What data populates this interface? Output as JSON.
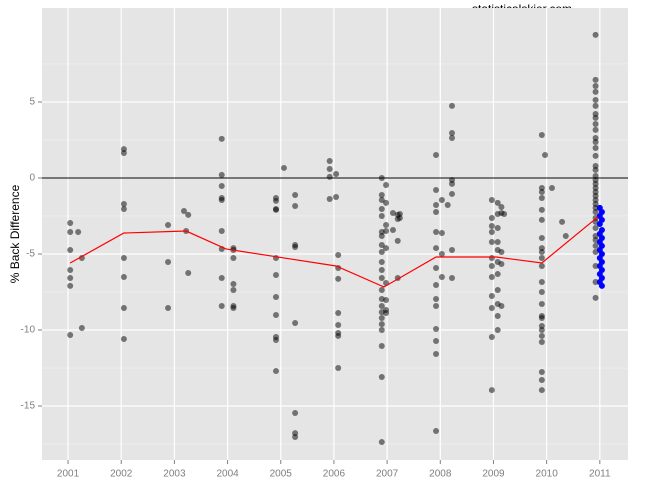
{
  "chart_data": {
    "type": "scatter",
    "watermark": "statisticalskier.com",
    "y_label": "% Back Difference",
    "xlim": [
      2000.51,
      2011.53
    ],
    "xticks": [
      2001,
      2002,
      2003,
      2004,
      2005,
      2006,
      2007,
      2008,
      2009,
      2010,
      2011
    ],
    "ylim": [
      -18.55,
      11.18
    ],
    "yticks": [
      -15,
      -10,
      -5,
      0,
      5
    ],
    "yminor": [
      -17.5,
      -12.5,
      -7.5,
      -2.5,
      2.5,
      7.5
    ],
    "grid": true,
    "hline": 0,
    "background": "#e5e5e5",
    "series": [
      {
        "mode": "points",
        "color": "#000000",
        "alpha": 0.5,
        "x": [
          2001.04,
          2001.04,
          2001.04,
          2001.04,
          2001.04,
          2001.04,
          2001.04,
          2001.19,
          2001.26,
          2001.26,
          2002.05,
          2002.05,
          2002.05,
          2002.05,
          2002.05,
          2002.05,
          2002.05,
          2002.05,
          2002.88,
          2002.88,
          2002.88,
          2003.18,
          2003.26,
          2003.26,
          2003.22,
          2003.89,
          2003.89,
          2003.89,
          2003.89,
          2003.89,
          2003.89,
          2003.89,
          2003.89,
          2003.89,
          2004.11,
          2004.11,
          2004.11,
          2004.11,
          2004.11,
          2004.11,
          2004.11,
          2004.91,
          2004.91,
          2004.91,
          2004.91,
          2004.91,
          2004.91,
          2004.91,
          2004.91,
          2004.91,
          2004.91,
          2004.91,
          2005.06,
          2005.27,
          2005.27,
          2005.27,
          2005.27,
          2005.27,
          2005.27,
          2005.27,
          2005.27,
          2005.92,
          2005.92,
          2005.92,
          2005.92,
          2006.04,
          2006.04,
          2006.08,
          2006.08,
          2006.08,
          2006.08,
          2006.08,
          2006.08,
          2006.08,
          2006.08,
          2006.9,
          2006.9,
          2006.9,
          2006.9,
          2006.9,
          2006.9,
          2006.9,
          2006.9,
          2006.9,
          2006.9,
          2006.9,
          2006.9,
          2006.9,
          2006.9,
          2006.9,
          2006.9,
          2006.9,
          2006.9,
          2006.9,
          2006.9,
          2006.9,
          2006.9,
          2006.98,
          2006.98,
          2006.98,
          2006.98,
          2006.98,
          2006.98,
          2006.98,
          2006.98,
          2006.98,
          2007.11,
          2007.11,
          2007.2,
          2007.2,
          2007.2,
          2007.2,
          2007.24,
          2007.24,
          2007.92,
          2007.92,
          2007.92,
          2007.92,
          2007.92,
          2007.92,
          2007.92,
          2007.92,
          2007.92,
          2007.92,
          2007.92,
          2007.92,
          2007.92,
          2007.92,
          2008.03,
          2008.03,
          2008.03,
          2008.03,
          2008.14,
          2008.22,
          2008.22,
          2008.22,
          2008.22,
          2008.22,
          2008.22,
          2008.22,
          2008.22,
          2008.97,
          2008.97,
          2008.97,
          2008.97,
          2008.97,
          2008.97,
          2008.97,
          2008.97,
          2008.97,
          2008.97,
          2008.97,
          2008.97,
          2009.08,
          2009.08,
          2009.08,
          2009.08,
          2009.08,
          2009.08,
          2009.08,
          2009.08,
          2009.08,
          2009.08,
          2009.08,
          2009.15,
          2009.15,
          2009.15,
          2009.15,
          2009.15,
          2009.2,
          2009.91,
          2009.91,
          2009.91,
          2009.91,
          2009.91,
          2009.91,
          2009.91,
          2009.91,
          2009.91,
          2009.91,
          2009.91,
          2009.91,
          2009.91,
          2009.91,
          2009.91,
          2009.91,
          2009.91,
          2009.91,
          2009.91,
          2009.91,
          2009.91,
          2009.91,
          2009.91,
          2009.97,
          2010.1,
          2010.29,
          2010.36,
          2010.92,
          2010.92,
          2010.92,
          2010.92,
          2010.92,
          2010.92,
          2010.92,
          2010.92,
          2010.92,
          2010.92,
          2010.92,
          2010.92,
          2010.92,
          2010.92,
          2010.92,
          2010.92,
          2010.92,
          2010.92,
          2010.92,
          2010.92,
          2010.92,
          2010.92,
          2010.92,
          2010.92,
          2010.92,
          2010.92,
          2010.92,
          2010.92,
          2010.92,
          2010.92,
          2010.92,
          2010.92,
          2010.92,
          2010.92,
          2010.92,
          2010.92
        ],
        "values": [
          -2.96,
          -3.55,
          -4.74,
          -6.05,
          -6.58,
          -7.1,
          -10.33,
          -3.55,
          -5.26,
          -9.87,
          1.9,
          1.64,
          -1.71,
          -2.04,
          -5.26,
          -6.51,
          -8.55,
          -10.59,
          -3.09,
          -5.53,
          -8.55,
          -2.17,
          -2.43,
          -6.25,
          -3.49,
          2.57,
          0.2,
          -0.53,
          -1.32,
          -1.45,
          -3.49,
          -4.67,
          -6.58,
          -8.42,
          -4.61,
          -4.74,
          -5.26,
          -6.97,
          -7.37,
          -8.42,
          -8.55,
          -1.32,
          -1.51,
          -2.04,
          -2.1,
          -5.26,
          -6.38,
          -7.83,
          -9.01,
          -10.46,
          -10.66,
          -12.7,
          0.66,
          -1.12,
          -1.84,
          -4.41,
          -4.54,
          -9.54,
          -15.46,
          -16.78,
          -17.04,
          1.12,
          0.59,
          0.07,
          -1.38,
          0.26,
          -1.25,
          -5.07,
          -5.92,
          -6.64,
          -8.88,
          -9.67,
          -10.2,
          -10.39,
          -12.5,
          0,
          -1.12,
          -1.45,
          -2.04,
          -2.5,
          -3.55,
          -3.82,
          -4.41,
          -4.87,
          -5.53,
          -6.05,
          -6.58,
          -7.37,
          -7.96,
          -8.42,
          -8.82,
          -9.21,
          -9.61,
          -10,
          -11.05,
          -13.09,
          -17.37,
          -0.46,
          -1.64,
          -3.09,
          -3.49,
          -4.61,
          -6.91,
          -8.03,
          -8.68,
          -8.88,
          -2.3,
          -3.42,
          -2.43,
          -2.7,
          -4.14,
          -6.58,
          -2.37,
          -2.63,
          1.51,
          -0.79,
          -1.78,
          -2.24,
          -3.55,
          -4.61,
          -5.92,
          -7.04,
          -7.96,
          -8.42,
          -9.93,
          -10.72,
          -11.58,
          -16.64,
          -1.45,
          -3.62,
          -5.0,
          -6.51,
          -1.78,
          4.74,
          2.96,
          2.63,
          -0.13,
          -0.39,
          -1.05,
          -4.74,
          -6.58,
          -1.45,
          -2.63,
          -3.16,
          -3.55,
          -4.21,
          -5.26,
          -5.79,
          -6.51,
          -7.76,
          -8.55,
          -10.46,
          -13.95,
          -1.64,
          -2.37,
          -3.29,
          -4.21,
          -4.74,
          -5.53,
          -6.32,
          -7.37,
          -8.29,
          -9.08,
          -10,
          -1.91,
          -2.3,
          -4.87,
          -5.66,
          -8.42,
          -2.37,
          2.83,
          -0.66,
          -0.92,
          -1.32,
          -2.1,
          -2.76,
          -3.95,
          -4.61,
          -4.87,
          -5.26,
          -5.79,
          -6.84,
          -7.5,
          -8.29,
          -9.08,
          -9.21,
          -9.74,
          -10,
          -10.39,
          -10.79,
          -12.76,
          -13.29,
          -13.95,
          1.51,
          -0.66,
          -2.89,
          -3.82,
          9.41,
          6.45,
          6.05,
          5.66,
          5.13,
          4.74,
          4.21,
          3.95,
          3.55,
          3.16,
          2.63,
          2.37,
          1.97,
          1.45,
          0.79,
          0.53,
          0.13,
          -0.13,
          -0.39,
          -0.66,
          -0.92,
          -1.18,
          -1.45,
          -1.71,
          -1.97,
          -2.24,
          -2.63,
          -2.89,
          -3.29,
          -3.82,
          -4.08,
          -4.47,
          -4.87,
          -5.79,
          -6.84,
          -7.89
        ]
      },
      {
        "mode": "points",
        "color": "#0000ff",
        "alpha": 1,
        "x": [
          2011.0,
          2011.04,
          2011.0,
          2011.04,
          2011.0,
          2011.04,
          2011.0,
          2011.04,
          2011.0,
          2011.04,
          2011.0,
          2011.04,
          2011.0,
          2011.04,
          2011.0,
          2011.04,
          2011.0,
          2011.04,
          2011.0,
          2011.04
        ],
        "values": [
          -1.97,
          -2.24,
          -2.5,
          -2.76,
          -3.03,
          -3.42,
          -3.68,
          -3.95,
          -4.21,
          -4.47,
          -4.74,
          -5.0,
          -5.26,
          -5.53,
          -5.79,
          -6.05,
          -6.32,
          -6.58,
          -6.84,
          -7.1
        ]
      },
      {
        "mode": "line",
        "color": "#ff0000",
        "alpha": 1,
        "x": [
          2001.04,
          2002.05,
          2003.22,
          2003.97,
          2004.95,
          2006.04,
          2006.94,
          2007.92,
          2009.05,
          2009.91,
          2010.96
        ],
        "values": [
          -5.59,
          -3.62,
          -3.49,
          -4.67,
          -5.2,
          -5.79,
          -7.17,
          -5.2,
          -5.2,
          -5.59,
          -2.57
        ]
      }
    ]
  }
}
